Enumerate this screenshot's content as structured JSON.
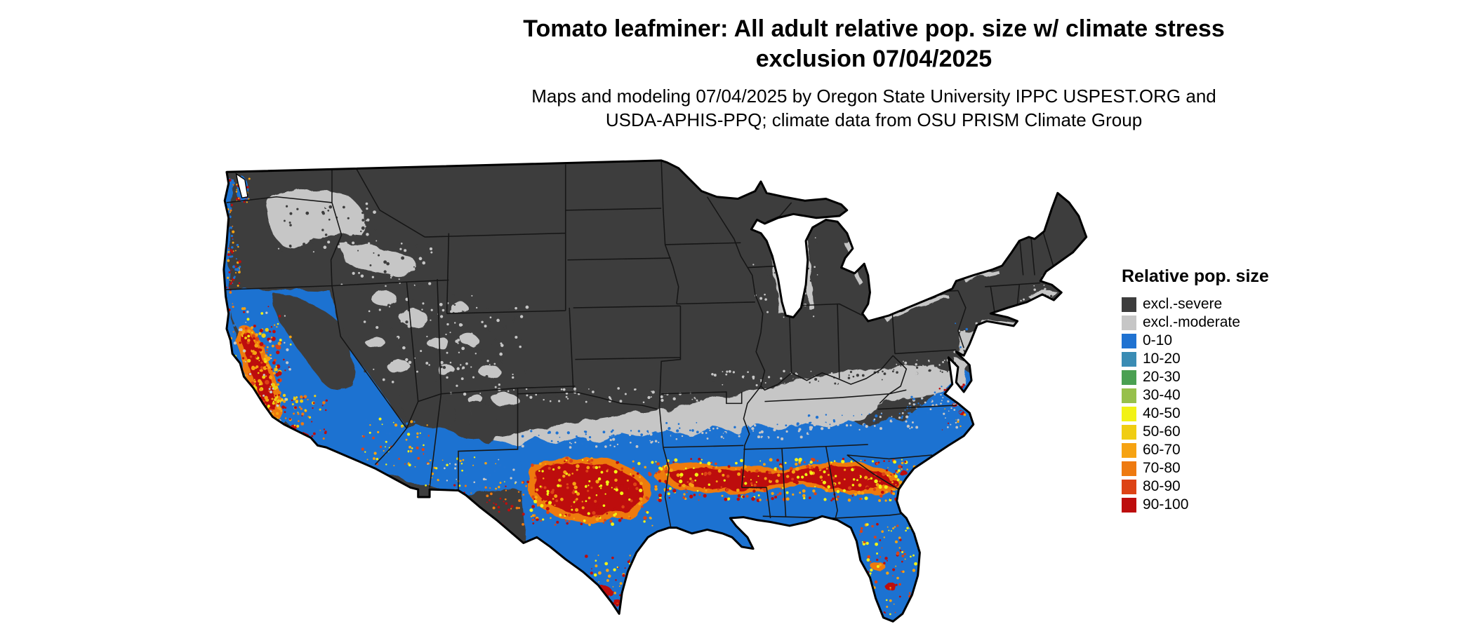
{
  "title": {
    "line1": "Tomato leafminer: All adult relative pop. size w/ climate stress",
    "line2": "exclusion 07/04/2025"
  },
  "subtitle": {
    "line1": "Maps and modeling 07/04/2025 by Oregon State University IPPC USPEST.ORG and",
    "line2": "USDA-APHIS-PPQ; climate data from OSU PRISM Climate Group"
  },
  "legend": {
    "title": "Relative pop. size",
    "items": [
      {
        "key": "severe",
        "label": "excl.-severe",
        "color": "#3d3d3d"
      },
      {
        "key": "moderate",
        "label": "excl.-moderate",
        "color": "#c6c6c6"
      },
      {
        "key": "b0",
        "label": "0-10",
        "color": "#1f72d1"
      },
      {
        "key": "b10",
        "label": "10-20",
        "color": "#3a8cb4"
      },
      {
        "key": "b20",
        "label": "20-30",
        "color": "#4aa052"
      },
      {
        "key": "b30",
        "label": "30-40",
        "color": "#97c04b"
      },
      {
        "key": "b40",
        "label": "40-50",
        "color": "#f2f215"
      },
      {
        "key": "b50",
        "label": "50-60",
        "color": "#f0cd12"
      },
      {
        "key": "b60",
        "label": "60-70",
        "color": "#f6a312"
      },
      {
        "key": "b70",
        "label": "70-80",
        "color": "#ee7a10"
      },
      {
        "key": "b80",
        "label": "80-90",
        "color": "#dd4316"
      },
      {
        "key": "b90",
        "label": "90-100",
        "color": "#bd0d0d"
      }
    ]
  }
}
